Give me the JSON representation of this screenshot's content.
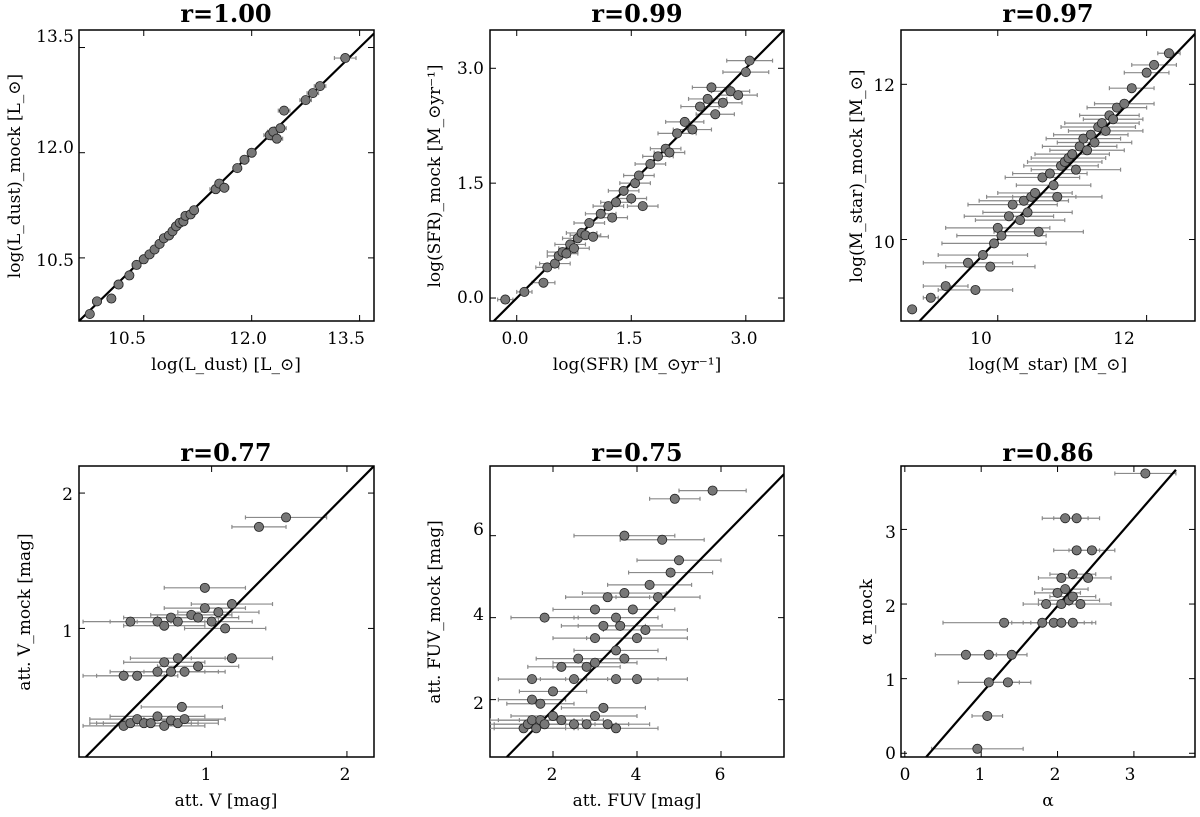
{
  "chart_data": [
    {
      "type": "scatter",
      "title": "r=1.00",
      "xlabel": "log(L_dust) [L_⊙]",
      "ylabel": "log(L_dust)_mock [L_⊙]",
      "xlim": [
        9.6,
        13.7
      ],
      "ylim": [
        9.6,
        13.75
      ],
      "xticks": [
        "10.5",
        "12.0",
        "13.5"
      ],
      "yticks": [
        "10.5",
        "12.0",
        "13.5"
      ],
      "line": [
        [
          9.6,
          9.6
        ],
        [
          13.7,
          13.7
        ]
      ],
      "points": [
        [
          9.75,
          9.7,
          0.05
        ],
        [
          9.85,
          9.88,
          0.06
        ],
        [
          10.05,
          9.92,
          0.05
        ],
        [
          10.15,
          10.12,
          0.06
        ],
        [
          10.3,
          10.25,
          0.05
        ],
        [
          10.4,
          10.4,
          0.06
        ],
        [
          10.5,
          10.48,
          0.05
        ],
        [
          10.58,
          10.55,
          0.06
        ],
        [
          10.65,
          10.62,
          0.05
        ],
        [
          10.72,
          10.7,
          0.06
        ],
        [
          10.78,
          10.78,
          0.05
        ],
        [
          10.85,
          10.82,
          0.06
        ],
        [
          10.9,
          10.88,
          0.05
        ],
        [
          10.95,
          10.95,
          0.06
        ],
        [
          11.0,
          11.0,
          0.05
        ],
        [
          11.05,
          11.02,
          0.06
        ],
        [
          11.08,
          11.1,
          0.05
        ],
        [
          11.15,
          11.12,
          0.06
        ],
        [
          11.2,
          11.18,
          0.05
        ],
        [
          11.5,
          11.48,
          0.08
        ],
        [
          11.55,
          11.56,
          0.06
        ],
        [
          11.62,
          11.5,
          0.06
        ],
        [
          11.8,
          11.78,
          0.06
        ],
        [
          11.9,
          11.9,
          0.06
        ],
        [
          12.0,
          12.0,
          0.06
        ],
        [
          12.25,
          12.25,
          0.08
        ],
        [
          12.3,
          12.3,
          0.08
        ],
        [
          12.35,
          12.2,
          0.08
        ],
        [
          12.4,
          12.35,
          0.08
        ],
        [
          12.45,
          12.6,
          0.08
        ],
        [
          12.75,
          12.75,
          0.08
        ],
        [
          12.85,
          12.85,
          0.08
        ],
        [
          12.95,
          12.95,
          0.08
        ],
        [
          13.3,
          13.35,
          0.15
        ]
      ]
    },
    {
      "type": "scatter",
      "title": "r=0.99",
      "xlabel": "log(SFR) [M_⊙yr⁻¹]",
      "ylabel": "log(SFR)_mock [M_⊙yr⁻¹]",
      "xlim": [
        -0.35,
        3.5
      ],
      "ylim": [
        -0.3,
        3.5
      ],
      "xticks": [
        "0.0",
        "1.5",
        "3.0"
      ],
      "yticks": [
        "0.0",
        "1.5",
        "3.0"
      ],
      "line": [
        [
          -0.35,
          -0.35
        ],
        [
          3.5,
          3.5
        ]
      ],
      "points": [
        [
          -0.15,
          -0.02,
          0.1
        ],
        [
          0.1,
          0.08,
          0.1
        ],
        [
          0.35,
          0.2,
          0.15
        ],
        [
          0.4,
          0.4,
          0.15
        ],
        [
          0.5,
          0.45,
          0.2
        ],
        [
          0.55,
          0.55,
          0.15
        ],
        [
          0.6,
          0.6,
          0.2
        ],
        [
          0.65,
          0.58,
          0.15
        ],
        [
          0.7,
          0.7,
          0.2
        ],
        [
          0.75,
          0.65,
          0.2
        ],
        [
          0.8,
          0.78,
          0.2
        ],
        [
          0.85,
          0.85,
          0.2
        ],
        [
          0.9,
          0.82,
          0.2
        ],
        [
          0.95,
          0.98,
          0.2
        ],
        [
          1.0,
          0.8,
          0.2
        ],
        [
          1.1,
          1.1,
          0.2
        ],
        [
          1.2,
          1.2,
          0.2
        ],
        [
          1.25,
          1.05,
          0.2
        ],
        [
          1.3,
          1.25,
          0.2
        ],
        [
          1.4,
          1.4,
          0.2
        ],
        [
          1.5,
          1.3,
          0.2
        ],
        [
          1.55,
          1.5,
          0.2
        ],
        [
          1.6,
          1.6,
          0.2
        ],
        [
          1.65,
          1.2,
          0.2
        ],
        [
          1.75,
          1.75,
          0.2
        ],
        [
          1.85,
          1.85,
          0.2
        ],
        [
          1.95,
          1.95,
          0.2
        ],
        [
          2.0,
          1.9,
          0.2
        ],
        [
          2.1,
          2.15,
          0.25
        ],
        [
          2.2,
          2.3,
          0.25
        ],
        [
          2.3,
          2.2,
          0.25
        ],
        [
          2.4,
          2.5,
          0.25
        ],
        [
          2.5,
          2.6,
          0.25
        ],
        [
          2.55,
          2.75,
          0.25
        ],
        [
          2.6,
          2.4,
          0.25
        ],
        [
          2.7,
          2.55,
          0.25
        ],
        [
          2.8,
          2.7,
          0.25
        ],
        [
          2.9,
          2.65,
          0.25
        ],
        [
          3.0,
          2.95,
          0.3
        ],
        [
          3.05,
          3.1,
          0.3
        ]
      ]
    },
    {
      "type": "scatter",
      "title": "r=0.97",
      "xlabel": "log(M_star) [M_⊙]",
      "ylabel": "log(M_star)_mock [M_⊙]",
      "xlim": [
        8.7,
        12.65
      ],
      "ylim": [
        8.95,
        12.7
      ],
      "xticks": [
        "10",
        "12"
      ],
      "yticks": [
        "10",
        "12"
      ],
      "line": [
        [
          8.7,
          8.7
        ],
        [
          12.65,
          12.65
        ]
      ],
      "points": [
        [
          8.85,
          9.1,
          0.05
        ],
        [
          9.1,
          9.25,
          0.1
        ],
        [
          9.3,
          9.4,
          0.3
        ],
        [
          9.6,
          9.7,
          0.6
        ],
        [
          9.7,
          9.35,
          0.5
        ],
        [
          9.8,
          9.8,
          0.6
        ],
        [
          9.9,
          9.65,
          0.6
        ],
        [
          9.95,
          9.95,
          0.7
        ],
        [
          10.0,
          10.15,
          0.7
        ],
        [
          10.05,
          10.05,
          0.6
        ],
        [
          10.15,
          10.3,
          0.6
        ],
        [
          10.2,
          10.45,
          0.6
        ],
        [
          10.3,
          10.25,
          0.6
        ],
        [
          10.35,
          10.5,
          0.6
        ],
        [
          10.4,
          10.35,
          0.6
        ],
        [
          10.45,
          10.55,
          0.6
        ],
        [
          10.5,
          10.6,
          0.5
        ],
        [
          10.55,
          10.1,
          0.6
        ],
        [
          10.6,
          10.8,
          0.5
        ],
        [
          10.7,
          10.85,
          0.5
        ],
        [
          10.75,
          10.7,
          0.5
        ],
        [
          10.8,
          10.55,
          0.6
        ],
        [
          10.85,
          10.95,
          0.5
        ],
        [
          10.9,
          11.0,
          0.5
        ],
        [
          10.95,
          11.05,
          0.5
        ],
        [
          11.0,
          11.1,
          0.5
        ],
        [
          11.05,
          10.9,
          0.6
        ],
        [
          11.1,
          11.2,
          0.5
        ],
        [
          11.15,
          11.3,
          0.5
        ],
        [
          11.2,
          11.15,
          0.5
        ],
        [
          11.25,
          11.35,
          0.5
        ],
        [
          11.3,
          11.25,
          0.5
        ],
        [
          11.35,
          11.45,
          0.5
        ],
        [
          11.4,
          11.5,
          0.5
        ],
        [
          11.45,
          11.4,
          0.5
        ],
        [
          11.5,
          11.6,
          0.4
        ],
        [
          11.55,
          11.55,
          0.4
        ],
        [
          11.6,
          11.7,
          0.4
        ],
        [
          11.7,
          11.75,
          0.4
        ],
        [
          11.8,
          11.95,
          0.3
        ],
        [
          12.0,
          12.15,
          0.3
        ],
        [
          12.1,
          12.25,
          0.3
        ],
        [
          12.3,
          12.4,
          0.15
        ]
      ]
    },
    {
      "type": "scatter",
      "title": "r=0.77",
      "xlabel": "att. V [mag]",
      "ylabel": "att. V_mock [mag]",
      "xlim": [
        0.02,
        2.2
      ],
      "ylim": [
        0.05,
        2.2
      ],
      "xticks": [
        "1",
        "2"
      ],
      "yticks": [
        "1",
        "2"
      ],
      "line": [
        [
          0.07,
          0.05
        ],
        [
          2.2,
          2.2
        ]
      ],
      "points": [
        [
          0.35,
          0.28,
          0.3
        ],
        [
          0.4,
          0.3,
          0.3
        ],
        [
          0.45,
          0.33,
          0.35
        ],
        [
          0.5,
          0.3,
          0.35
        ],
        [
          0.6,
          0.35,
          0.35
        ],
        [
          0.65,
          0.28,
          0.3
        ],
        [
          0.7,
          0.32,
          0.35
        ],
        [
          0.75,
          0.3,
          0.3
        ],
        [
          0.8,
          0.33,
          0.3
        ],
        [
          0.55,
          0.3,
          0.35
        ],
        [
          0.78,
          0.42,
          0.3
        ],
        [
          0.35,
          0.65,
          0.3
        ],
        [
          0.45,
          0.65,
          0.3
        ],
        [
          0.6,
          0.68,
          0.35
        ],
        [
          0.65,
          0.75,
          0.3
        ],
        [
          0.7,
          0.68,
          0.35
        ],
        [
          0.75,
          0.78,
          0.35
        ],
        [
          0.8,
          0.68,
          0.3
        ],
        [
          0.9,
          0.72,
          0.3
        ],
        [
          1.15,
          0.78,
          0.3
        ],
        [
          0.4,
          1.05,
          0.35
        ],
        [
          0.6,
          1.05,
          0.35
        ],
        [
          0.65,
          1.02,
          0.3
        ],
        [
          0.7,
          1.08,
          0.35
        ],
        [
          0.75,
          1.05,
          0.3
        ],
        [
          0.85,
          1.1,
          0.3
        ],
        [
          0.9,
          1.08,
          0.3
        ],
        [
          0.95,
          1.15,
          0.3
        ],
        [
          1.0,
          1.05,
          0.3
        ],
        [
          1.05,
          1.12,
          0.3
        ],
        [
          1.1,
          1.0,
          0.3
        ],
        [
          1.15,
          1.18,
          0.3
        ],
        [
          0.95,
          1.3,
          0.3
        ],
        [
          1.35,
          1.75,
          0.2
        ],
        [
          1.55,
          1.82,
          0.3
        ]
      ]
    },
    {
      "type": "scatter",
      "title": "r=0.75",
      "xlabel": "att. FUV [mag]",
      "ylabel": "att. FUV_mock [mag]",
      "xlim": [
        0.5,
        7.5
      ],
      "ylim": [
        0.6,
        7.7
      ],
      "xticks": [
        "2",
        "4",
        "6"
      ],
      "yticks": [
        "2",
        "4",
        "6"
      ],
      "line": [
        [
          0.9,
          0.6
        ],
        [
          7.5,
          7.5
        ]
      ],
      "points": [
        [
          1.3,
          1.3,
          1.0
        ],
        [
          1.4,
          1.4,
          1.0
        ],
        [
          1.5,
          1.5,
          1.0
        ],
        [
          1.6,
          1.3,
          1.0
        ],
        [
          1.7,
          1.5,
          1.0
        ],
        [
          1.8,
          1.4,
          1.2
        ],
        [
          2.0,
          1.6,
          1.0
        ],
        [
          2.2,
          1.5,
          1.0
        ],
        [
          2.5,
          1.4,
          1.0
        ],
        [
          2.8,
          1.4,
          1.0
        ],
        [
          3.0,
          1.6,
          1.0
        ],
        [
          3.3,
          1.4,
          1.0
        ],
        [
          3.5,
          1.3,
          1.0
        ],
        [
          1.5,
          2.0,
          0.8
        ],
        [
          1.7,
          1.9,
          0.8
        ],
        [
          2.0,
          2.2,
          0.8
        ],
        [
          2.5,
          2.5,
          0.8
        ],
        [
          2.8,
          2.8,
          0.8
        ],
        [
          3.0,
          2.9,
          1.0
        ],
        [
          3.2,
          1.8,
          1.0
        ],
        [
          3.5,
          2.5,
          1.0
        ],
        [
          3.7,
          3.0,
          1.0
        ],
        [
          4.0,
          2.5,
          1.2
        ],
        [
          1.5,
          2.5,
          0.8
        ],
        [
          2.2,
          2.8,
          0.8
        ],
        [
          2.6,
          3.0,
          1.0
        ],
        [
          3.0,
          3.5,
          1.0
        ],
        [
          3.2,
          3.8,
          1.0
        ],
        [
          3.5,
          3.2,
          1.0
        ],
        [
          3.6,
          3.8,
          1.0
        ],
        [
          4.0,
          3.5,
          1.2
        ],
        [
          4.2,
          3.7,
          1.0
        ],
        [
          1.8,
          4.0,
          0.8
        ],
        [
          3.0,
          4.2,
          1.0
        ],
        [
          3.3,
          4.5,
          1.0
        ],
        [
          3.5,
          4.0,
          1.0
        ],
        [
          3.7,
          4.6,
          1.0
        ],
        [
          3.9,
          4.2,
          1.0
        ],
        [
          4.3,
          4.8,
          1.0
        ],
        [
          4.5,
          4.5,
          1.0
        ],
        [
          4.8,
          5.1,
          1.0
        ],
        [
          5.0,
          5.4,
          1.0
        ],
        [
          4.6,
          5.9,
          1.0
        ],
        [
          3.7,
          6.0,
          1.2
        ],
        [
          5.8,
          7.1,
          0.8
        ],
        [
          4.9,
          6.9,
          0.6
        ]
      ]
    },
    {
      "type": "scatter",
      "title": "r=0.86",
      "xlabel": "α",
      "ylabel": "α_mock",
      "xlim": [
        -0.05,
        3.8
      ],
      "ylim": [
        -0.05,
        3.85
      ],
      "xticks": [
        "0",
        "1",
        "2",
        "3"
      ],
      "yticks": [
        "0",
        "1",
        "2",
        "3"
      ],
      "line": [
        [
          0.28,
          -0.05
        ],
        [
          3.55,
          3.8
        ]
      ],
      "points": [
        [
          0.95,
          0.06,
          0.6
        ],
        [
          1.08,
          0.5,
          0.2
        ],
        [
          0.8,
          1.32,
          0.4
        ],
        [
          1.1,
          1.32,
          0.3
        ],
        [
          1.4,
          1.32,
          0.2
        ],
        [
          1.1,
          0.95,
          0.4
        ],
        [
          1.35,
          0.95,
          0.3
        ],
        [
          1.3,
          1.75,
          0.8
        ],
        [
          1.8,
          1.75,
          0.4
        ],
        [
          1.95,
          1.75,
          0.4
        ],
        [
          2.05,
          1.75,
          0.4
        ],
        [
          2.2,
          1.75,
          0.3
        ],
        [
          1.85,
          2.0,
          0.3
        ],
        [
          2.05,
          2.0,
          0.3
        ],
        [
          2.15,
          2.05,
          0.4
        ],
        [
          2.3,
          2.0,
          0.4
        ],
        [
          2.0,
          2.15,
          0.3
        ],
        [
          2.1,
          2.2,
          0.3
        ],
        [
          2.2,
          2.1,
          0.3
        ],
        [
          2.05,
          2.35,
          0.3
        ],
        [
          2.2,
          2.4,
          0.3
        ],
        [
          2.4,
          2.35,
          0.3
        ],
        [
          2.25,
          2.72,
          0.3
        ],
        [
          2.45,
          2.72,
          0.3
        ],
        [
          2.1,
          3.15,
          0.3
        ],
        [
          2.25,
          3.15,
          0.3
        ],
        [
          3.15,
          3.75,
          0.4
        ]
      ]
    }
  ]
}
